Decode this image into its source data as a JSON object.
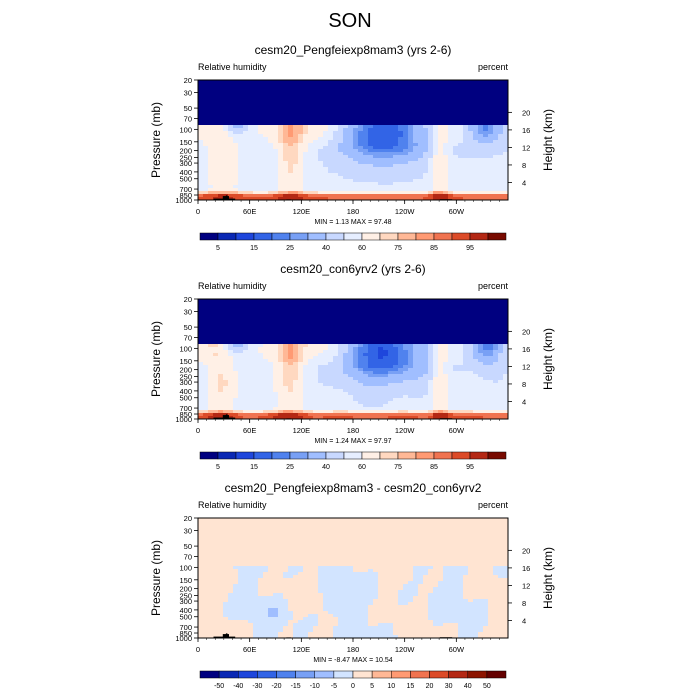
{
  "figure_title": "SON",
  "chart_data": [
    {
      "type": "heatmap",
      "title": "cesm20_Pengfeiexp8mam3 (yrs 2-6)",
      "left_string": "Relative humidity",
      "right_string": "percent",
      "ylabel": "Pressure (mb)",
      "y2label": "Height (km)",
      "x_ticks": [
        "0",
        "60E",
        "120E",
        "180",
        "120W",
        "60W"
      ],
      "y_ticks": [
        "20",
        "30",
        "50",
        "70",
        "100",
        "150",
        "200",
        "250",
        "300",
        "400",
        "500",
        "700",
        "850",
        "1000"
      ],
      "y2_ticks": [
        "20",
        "16",
        "12",
        "8",
        "4"
      ],
      "stats": "MIN =   1.13  MAX =  97.48",
      "min": 1.13,
      "max": 97.48,
      "colorbar_levels": [
        5,
        10,
        15,
        20,
        25,
        30,
        40,
        50,
        60,
        70,
        75,
        80,
        85,
        90,
        95
      ],
      "colorbar_labels": [
        "5",
        "15",
        "25",
        "40",
        "60",
        "75",
        "85",
        "95"
      ],
      "colors": [
        "#000080",
        "#0a28b4",
        "#1e46dc",
        "#3264e6",
        "#5082ee",
        "#78a0f5",
        "#a0beff",
        "#c8d8ff",
        "#e6eeff",
        "#fff0e6",
        "#ffd8c0",
        "#ffb896",
        "#ff9a73",
        "#f07350",
        "#dc4b28",
        "#b42814",
        "#780a00"
      ],
      "ylim": [
        1000,
        20
      ]
    },
    {
      "type": "heatmap",
      "title": "cesm20_con6yrv2 (yrs 2-6)",
      "left_string": "Relative humidity",
      "right_string": "percent",
      "ylabel": "Pressure (mb)",
      "y2label": "Height (km)",
      "x_ticks": [
        "0",
        "60E",
        "120E",
        "180",
        "120W",
        "60W"
      ],
      "y_ticks": [
        "20",
        "30",
        "50",
        "70",
        "100",
        "150",
        "200",
        "250",
        "300",
        "400",
        "500",
        "700",
        "850",
        "1000"
      ],
      "y2_ticks": [
        "20",
        "16",
        "12",
        "8",
        "4"
      ],
      "stats": "MIN =   1.24  MAX =  97.97",
      "min": 1.24,
      "max": 97.97,
      "colorbar_levels": [
        5,
        10,
        15,
        20,
        25,
        30,
        40,
        50,
        60,
        70,
        75,
        80,
        85,
        90,
        95
      ],
      "colorbar_labels": [
        "5",
        "15",
        "25",
        "40",
        "60",
        "75",
        "85",
        "95"
      ],
      "colors": [
        "#000080",
        "#0a28b4",
        "#1e46dc",
        "#3264e6",
        "#5082ee",
        "#78a0f5",
        "#a0beff",
        "#c8d8ff",
        "#e6eeff",
        "#fff0e6",
        "#ffd8c0",
        "#ffb896",
        "#ff9a73",
        "#f07350",
        "#dc4b28",
        "#b42814",
        "#780a00"
      ],
      "ylim": [
        1000,
        20
      ]
    },
    {
      "type": "heatmap",
      "title": "cesm20_Pengfeiexp8mam3 - cesm20_con6yrv2",
      "left_string": "Relative humidity",
      "right_string": "percent",
      "ylabel": "Pressure (mb)",
      "y2label": "Height (km)",
      "x_ticks": [
        "0",
        "60E",
        "120E",
        "180",
        "120W",
        "60W"
      ],
      "y_ticks": [
        "20",
        "30",
        "50",
        "70",
        "100",
        "150",
        "200",
        "250",
        "300",
        "400",
        "500",
        "700",
        "850",
        "1000"
      ],
      "y2_ticks": [
        "20",
        "16",
        "12",
        "8",
        "4"
      ],
      "stats": "MIN =  -8.47  MAX =  10.54",
      "min": -8.47,
      "max": 10.54,
      "colorbar_levels": [
        -50,
        -40,
        -30,
        -20,
        -15,
        -10,
        -5,
        0,
        5,
        10,
        15,
        20,
        30,
        40,
        50
      ],
      "colorbar_labels": [
        "-50",
        "-40",
        "-30",
        "-20",
        "-15",
        "-10",
        "-5",
        "0",
        "5",
        "10",
        "15",
        "20",
        "30",
        "40",
        "50"
      ],
      "colors": [
        "#000080",
        "#0a28b4",
        "#1e46dc",
        "#3264e6",
        "#5082ee",
        "#78a0f5",
        "#a0beff",
        "#d2e4ff",
        "#ffe4d2",
        "#ffb896",
        "#ff9a73",
        "#f07350",
        "#dc4b28",
        "#b42814",
        "#8c1400",
        "#640000"
      ],
      "ylim": [
        1000,
        20
      ]
    }
  ]
}
